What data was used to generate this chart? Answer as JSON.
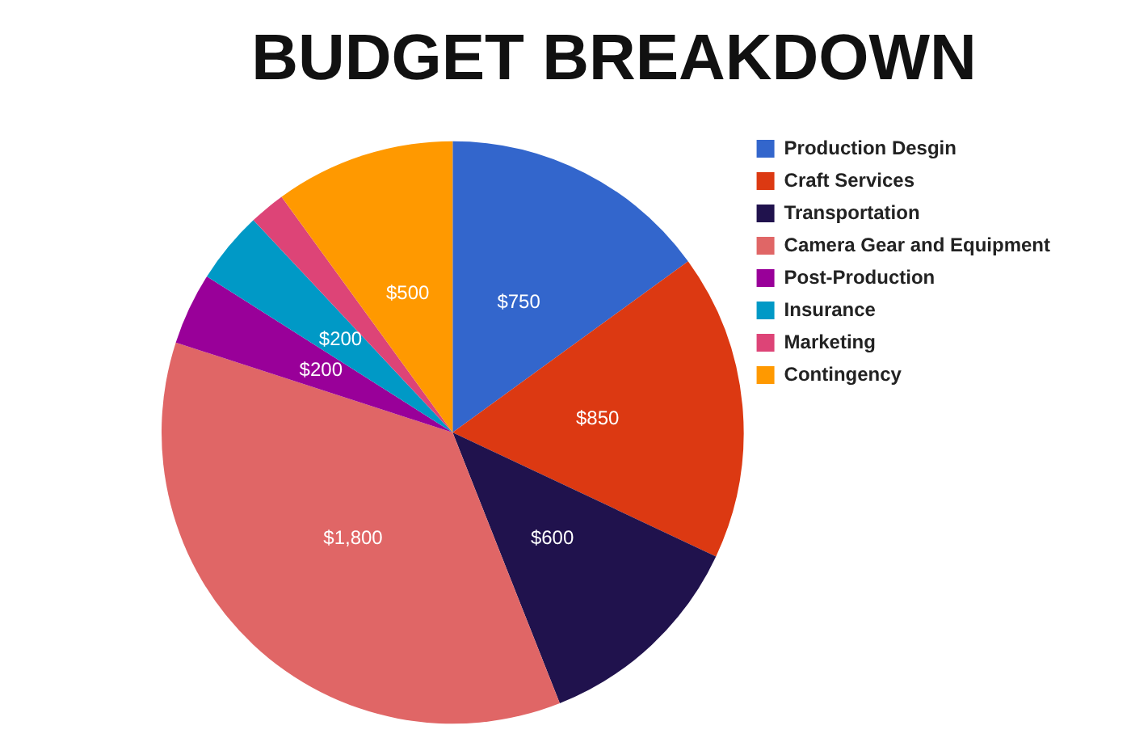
{
  "chart_data": {
    "type": "pie",
    "title": "BUDGET BREAKDOWN",
    "categories": [
      "Production Desgin",
      "Craft Services",
      "Transportation",
      "Camera Gear and Equipment",
      "Post-Production",
      "Insurance",
      "Marketing",
      "Contingency"
    ],
    "values": [
      750,
      850,
      600,
      1800,
      200,
      200,
      100,
      500
    ],
    "value_labels": [
      "$750",
      "$850",
      "$600",
      "$1,800",
      "$200",
      "$200",
      null,
      "$500"
    ],
    "colors": [
      "#3366cc",
      "#dc3912",
      "#20124d",
      "#e06666",
      "#990099",
      "#0099c6",
      "#dd4477",
      "#ff9900"
    ],
    "legend": "right"
  }
}
